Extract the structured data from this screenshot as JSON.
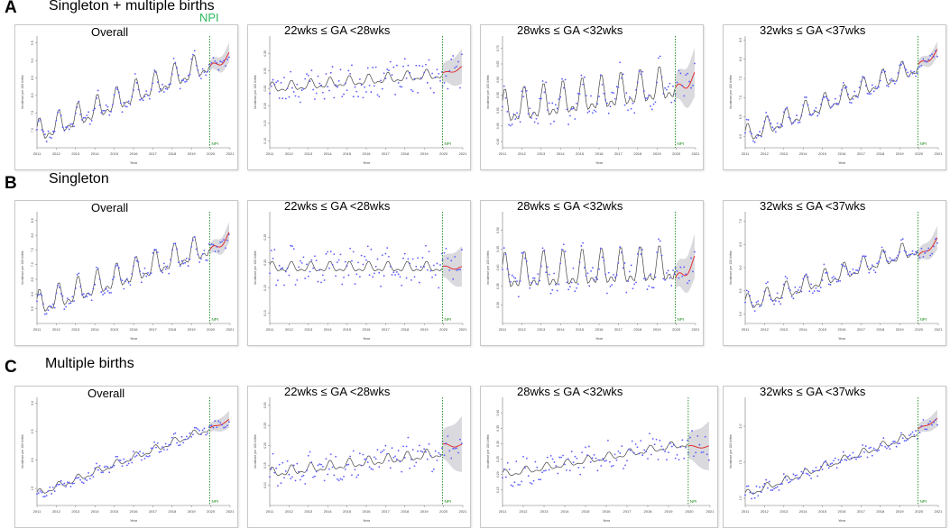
{
  "figure": {
    "rows": [
      {
        "letter": "A",
        "title": "Singleton + multiple births"
      },
      {
        "letter": "B",
        "title": "Singleton"
      },
      {
        "letter": "C",
        "title": "Multiple births"
      }
    ],
    "npi_top_label": "NPI"
  },
  "chart_data": [
    {
      "id": "A-overall",
      "type": "line",
      "row": "A",
      "title": "Overall",
      "xlabel": "Year",
      "ylabel": "Incidence per 100 births",
      "npi_label": "NPI",
      "npi_year": 2020,
      "xlim": [
        2011,
        2021
      ],
      "x_ticks": [
        "2011",
        "2012",
        "2013",
        "2014",
        "2015",
        "2016",
        "2017",
        "2018",
        "2019",
        "2020",
        "2021"
      ],
      "ylim": [
        6.5,
        9.7
      ],
      "y_ticks": [
        "7.0",
        "7.5",
        "8.0",
        "8.5",
        "9.0",
        "9.5"
      ],
      "series": [
        {
          "start": 6.9,
          "end": 8.9,
          "amp": 0.28,
          "noise": 0.16,
          "seed": 11
        },
        {
          "forecast_start": 8.75,
          "forecast_end": 9.15,
          "band": 0.28
        }
      ],
      "colors": {
        "line": "#444444",
        "points": "#5a5aff",
        "forecast": "#e02020",
        "band": "#cfcfd6",
        "npi": "#1a8a1a"
      }
    },
    {
      "id": "A-22-28",
      "type": "line",
      "row": "A",
      "title": "22wks ≤ GA <28wks",
      "xlabel": "Year",
      "ylabel": "Incidence per 100 births",
      "npi_label": "NPI",
      "npi_year": 2020,
      "xlim": [
        2011,
        2021
      ],
      "x_ticks": [
        "2011",
        "2012",
        "2013",
        "2014",
        "2015",
        "2016",
        "2017",
        "2018",
        "2019",
        "2020",
        "2021"
      ],
      "ylim": [
        0.08,
        0.4
      ],
      "y_ticks": [
        "0.10",
        "0.15",
        "0.20",
        "0.25",
        "0.30",
        "0.35"
      ],
      "series": [
        {
          "start": 0.25,
          "end": 0.29,
          "amp": 0.012,
          "noise": 0.045,
          "seed": 23
        },
        {
          "forecast_start": 0.29,
          "forecast_end": 0.31,
          "band": 0.05
        }
      ],
      "colors": {
        "line": "#444444",
        "points": "#5a5aff",
        "forecast": "#e02020",
        "band": "#cfcfd6",
        "npi": "#1a8a1a"
      }
    },
    {
      "id": "A-28-32",
      "type": "line",
      "row": "A",
      "title": "28wks ≤ GA <32wks",
      "xlabel": "Year",
      "ylabel": "Incidence per 100 births",
      "npi_label": "NPI",
      "npi_year": 2020,
      "xlim": [
        2011,
        2021
      ],
      "x_ticks": [
        "2011",
        "2012",
        "2013",
        "2014",
        "2015",
        "2016",
        "2017",
        "2018",
        "2019",
        "2020",
        "2021"
      ],
      "ylim": [
        0.38,
        0.74
      ],
      "y_ticks": [
        "0.40",
        "0.45",
        "0.50",
        "0.55",
        "0.60",
        "0.65",
        "0.70"
      ],
      "series": [
        {
          "start": 0.5,
          "end": 0.58,
          "amp": 0.045,
          "noise": 0.04,
          "seed": 37
        },
        {
          "forecast_start": 0.56,
          "forecast_end": 0.61,
          "band": 0.08
        }
      ],
      "colors": {
        "line": "#444444",
        "points": "#5a5aff",
        "forecast": "#e02020",
        "band": "#cfcfd6",
        "npi": "#1a8a1a"
      }
    },
    {
      "id": "A-32-37",
      "type": "line",
      "row": "A",
      "title": "32wks ≤ GA <37wks",
      "xlabel": "Year",
      "ylabel": "Incidence per 100 births",
      "npi_label": "NPI",
      "npi_year": 2020,
      "xlim": [
        2011,
        2021
      ],
      "x_ticks": [
        "2011",
        "2012",
        "2013",
        "2014",
        "2015",
        "2016",
        "2017",
        "2018",
        "2019",
        "2020",
        "2021"
      ],
      "ylim": [
        5.7,
        8.6
      ],
      "y_ticks": [
        "6.0",
        "6.5",
        "7.0",
        "7.5",
        "8.0",
        "8.5"
      ],
      "series": [
        {
          "start": 6.0,
          "end": 7.8,
          "amp": 0.2,
          "noise": 0.12,
          "seed": 41
        },
        {
          "forecast_start": 7.8,
          "forecast_end": 8.2,
          "band": 0.2
        }
      ],
      "colors": {
        "line": "#444444",
        "points": "#5a5aff",
        "forecast": "#e02020",
        "band": "#cfcfd6",
        "npi": "#1a8a1a"
      }
    },
    {
      "id": "B-overall",
      "type": "line",
      "row": "B",
      "title": "Overall",
      "xlabel": "Year",
      "ylabel": "Incidence per 100 births",
      "npi_label": "NPI",
      "npi_year": 2020,
      "xlim": [
        2011,
        2021
      ],
      "x_ticks": [
        "2011",
        "2012",
        "2013",
        "2014",
        "2015",
        "2016",
        "2017",
        "2018",
        "2019",
        "2020",
        "2021"
      ],
      "ylim": [
        5.0,
        8.8
      ],
      "y_ticks": [
        "5.5",
        "6.0",
        "6.5",
        "7.0",
        "7.5",
        "8.0",
        "8.5"
      ],
      "series": [
        {
          "start": 5.6,
          "end": 7.6,
          "amp": 0.35,
          "noise": 0.2,
          "seed": 53
        },
        {
          "forecast_start": 7.4,
          "forecast_end": 8.0,
          "band": 0.35
        }
      ],
      "colors": {
        "line": "#444444",
        "points": "#5a5aff",
        "forecast": "#e02020",
        "band": "#cfcfd6",
        "npi": "#1a8a1a"
      }
    },
    {
      "id": "B-22-28",
      "type": "line",
      "row": "B",
      "title": "22wks ≤ GA <28wks",
      "xlabel": "Year",
      "ylabel": "Incidence per 100 births",
      "npi_label": "NPI",
      "npi_year": 2020,
      "xlim": [
        2011,
        2021
      ],
      "x_ticks": [
        "2011",
        "2012",
        "2013",
        "2014",
        "2015",
        "2016",
        "2017",
        "2018",
        "2019",
        "2020",
        "2021"
      ],
      "ylim": [
        0.08,
        0.3
      ],
      "y_ticks": [
        "0.10",
        "0.15",
        "0.20",
        "0.25"
      ],
      "series": [
        {
          "start": 0.19,
          "end": 0.19,
          "amp": 0.008,
          "noise": 0.035,
          "seed": 61
        },
        {
          "forecast_start": 0.19,
          "forecast_end": 0.19,
          "band": 0.04
        }
      ],
      "colors": {
        "line": "#444444",
        "points": "#5a5aff",
        "forecast": "#e02020",
        "band": "#cfcfd6",
        "npi": "#1a8a1a"
      }
    },
    {
      "id": "B-28-32",
      "type": "line",
      "row": "B",
      "title": "28wks ≤ GA <32wks",
      "xlabel": "Year",
      "ylabel": "Incidence per 100 births",
      "npi_label": "NPI",
      "npi_year": 2020,
      "xlim": [
        2011,
        2021
      ],
      "x_ticks": [
        "2011",
        "2012",
        "2013",
        "2014",
        "2015",
        "2016",
        "2017",
        "2018",
        "2019",
        "2020",
        "2021"
      ],
      "ylim": [
        0.25,
        0.55
      ],
      "y_ticks": [
        "0.30",
        "0.35",
        "0.40",
        "0.45",
        "0.50"
      ],
      "series": [
        {
          "start": 0.38,
          "end": 0.4,
          "amp": 0.04,
          "noise": 0.03,
          "seed": 71
        },
        {
          "forecast_start": 0.36,
          "forecast_end": 0.42,
          "band": 0.06
        }
      ],
      "colors": {
        "line": "#444444",
        "points": "#5a5aff",
        "forecast": "#e02020",
        "band": "#cfcfd6",
        "npi": "#1a8a1a"
      }
    },
    {
      "id": "B-32-37",
      "type": "line",
      "row": "B",
      "title": "32wks ≤ GA <37wks",
      "xlabel": "Year",
      "ylabel": "Incidence per 100 births",
      "npi_label": "NPI",
      "npi_year": 2020,
      "xlim": [
        2011,
        2021
      ],
      "x_ticks": [
        "2011",
        "2012",
        "2013",
        "2014",
        "2015",
        "2016",
        "2017",
        "2018",
        "2019",
        "2020",
        "2021"
      ],
      "ylim": [
        4.8,
        7.2
      ],
      "y_ticks": [
        "5.0",
        "5.5",
        "6.0",
        "6.5",
        "7.0"
      ],
      "series": [
        {
          "start": 5.2,
          "end": 6.4,
          "amp": 0.15,
          "noise": 0.12,
          "seed": 83
        },
        {
          "forecast_start": 6.2,
          "forecast_end": 6.6,
          "band": 0.25
        }
      ],
      "colors": {
        "line": "#444444",
        "points": "#5a5aff",
        "forecast": "#e02020",
        "band": "#cfcfd6",
        "npi": "#1a8a1a"
      }
    },
    {
      "id": "C-overall",
      "type": "line",
      "row": "C",
      "title": "Overall",
      "xlabel": "Year",
      "ylabel": "Incidence per 100 births",
      "npi_label": "NPI",
      "npi_year": 2020,
      "xlim": [
        2011,
        2021
      ],
      "x_ticks": [
        "2011",
        "2012",
        "2013",
        "2014",
        "2015",
        "2016",
        "2017",
        "2018",
        "2019",
        "2020",
        "2021"
      ],
      "ylim": [
        1.2,
        3.1
      ],
      "y_ticks": [
        "1.5",
        "2.0",
        "2.5",
        "3.0"
      ],
      "series": [
        {
          "start": 1.4,
          "end": 2.55,
          "amp": 0.05,
          "noise": 0.08,
          "seed": 97
        },
        {
          "forecast_start": 2.55,
          "forecast_end": 2.7,
          "band": 0.15
        }
      ],
      "colors": {
        "line": "#444444",
        "points": "#5a5aff",
        "forecast": "#e02020",
        "band": "#cfcfd6",
        "npi": "#1a8a1a"
      }
    },
    {
      "id": "C-22-28",
      "type": "line",
      "row": "C",
      "title": "22wks ≤ GA <28wks",
      "xlabel": "Year",
      "ylabel": "Incidence per 100 births",
      "npi_label": "NPI",
      "npi_year": 2020,
      "xlim": [
        2011,
        2021
      ],
      "x_ticks": [
        "2011",
        "2012",
        "2013",
        "2014",
        "2015",
        "2016",
        "2017",
        "2018",
        "2019",
        "2020",
        "2021"
      ],
      "ylim": [
        0.05,
        0.32
      ],
      "y_ticks": [
        "0.10",
        "0.15",
        "0.20",
        "0.25",
        "0.30"
      ],
      "series": [
        {
          "start": 0.13,
          "end": 0.18,
          "amp": 0.01,
          "noise": 0.035,
          "seed": 101
        },
        {
          "forecast_start": 0.2,
          "forecast_end": 0.2,
          "band": 0.07
        }
      ],
      "colors": {
        "line": "#444444",
        "points": "#5a5aff",
        "forecast": "#e02020",
        "band": "#cfcfd6",
        "npi": "#1a8a1a"
      }
    },
    {
      "id": "C-28-32",
      "type": "line",
      "row": "C",
      "title": "28wks ≤ GA <32wks",
      "xlabel": "Year",
      "ylabel": "Incidence per 100 births",
      "npi_label": "NPI",
      "npi_year": 2020,
      "xlim": [
        2011,
        2021
      ],
      "x_ticks": [
        "2011",
        "2012",
        "2013",
        "2014",
        "2015",
        "2016",
        "2017",
        "2018",
        "2019",
        "2020",
        "2021"
      ],
      "ylim": [
        0.1,
        0.45
      ],
      "y_ticks": [
        "0.15",
        "0.20",
        "0.25",
        "0.30",
        "0.35",
        "0.40"
      ],
      "series": [
        {
          "start": 0.2,
          "end": 0.3,
          "amp": 0.01,
          "noise": 0.04,
          "seed": 113
        },
        {
          "forecast_start": 0.29,
          "forecast_end": 0.29,
          "band": 0.08
        }
      ],
      "colors": {
        "line": "#444444",
        "points": "#5a5aff",
        "forecast": "#e02020",
        "band": "#cfcfd6",
        "npi": "#1a8a1a"
      }
    },
    {
      "id": "C-32-37",
      "type": "line",
      "row": "C",
      "title": "32wks ≤ GA <37wks",
      "xlabel": "Year",
      "ylabel": "Incidence per 100 births",
      "npi_label": "NPI",
      "npi_year": 2020,
      "xlim": [
        2011,
        2021
      ],
      "x_ticks": [
        "2011",
        "2012",
        "2013",
        "2014",
        "2015",
        "2016",
        "2017",
        "2018",
        "2019",
        "2020",
        "2021"
      ],
      "ylim": [
        0.9,
        2.4
      ],
      "y_ticks": [
        "1.0",
        "1.5",
        "2.0"
      ],
      "series": [
        {
          "start": 1.05,
          "end": 1.9,
          "amp": 0.04,
          "noise": 0.08,
          "seed": 127
        },
        {
          "forecast_start": 1.95,
          "forecast_end": 2.1,
          "band": 0.12
        }
      ],
      "colors": {
        "line": "#444444",
        "points": "#5a5aff",
        "forecast": "#e02020",
        "band": "#cfcfd6",
        "npi": "#1a8a1a"
      }
    }
  ]
}
